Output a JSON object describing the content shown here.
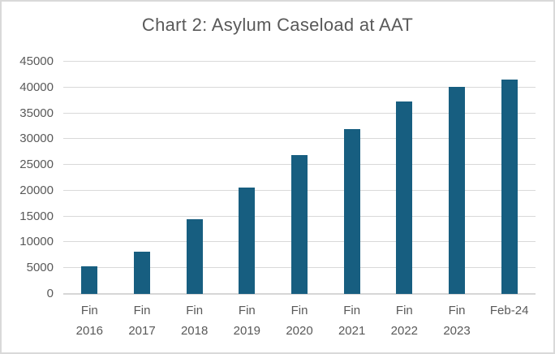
{
  "chart_data": {
    "type": "bar",
    "title": "Chart 2: Asylum Caseload at AAT",
    "categories": [
      "Fin 2016",
      "Fin 2017",
      "Fin 2018",
      "Fin 2019",
      "Fin 2020",
      "Fin 2021",
      "Fin 2022",
      "Fin 2023",
      "Feb-24"
    ],
    "category_label_lines": [
      [
        "Fin",
        "2016"
      ],
      [
        "Fin",
        "2017"
      ],
      [
        "Fin",
        "2018"
      ],
      [
        "Fin",
        "2019"
      ],
      [
        "Fin",
        "2020"
      ],
      [
        "Fin",
        "2021"
      ],
      [
        "Fin",
        "2022"
      ],
      [
        "Fin",
        "2023"
      ],
      [
        "Feb-24"
      ]
    ],
    "values": [
      5400,
      8200,
      14400,
      20600,
      26900,
      32000,
      37300,
      40100,
      41600
    ],
    "xlabel": "",
    "ylabel": "",
    "ylim": [
      0,
      45000
    ],
    "ytick_interval": 5000,
    "ytick_labels": [
      "0",
      "5000",
      "10000",
      "15000",
      "20000",
      "25000",
      "30000",
      "35000",
      "40000",
      "45000"
    ],
    "grid": true,
    "legend": "none",
    "colors": {
      "bar": "#175E80",
      "gridline": "#D9D9D9",
      "axis_line": "#D6D6D6",
      "axis_text": "#595959",
      "title_text": "#595959",
      "background": "#FFFFFF",
      "frame_border": "#D9D9D9"
    }
  }
}
